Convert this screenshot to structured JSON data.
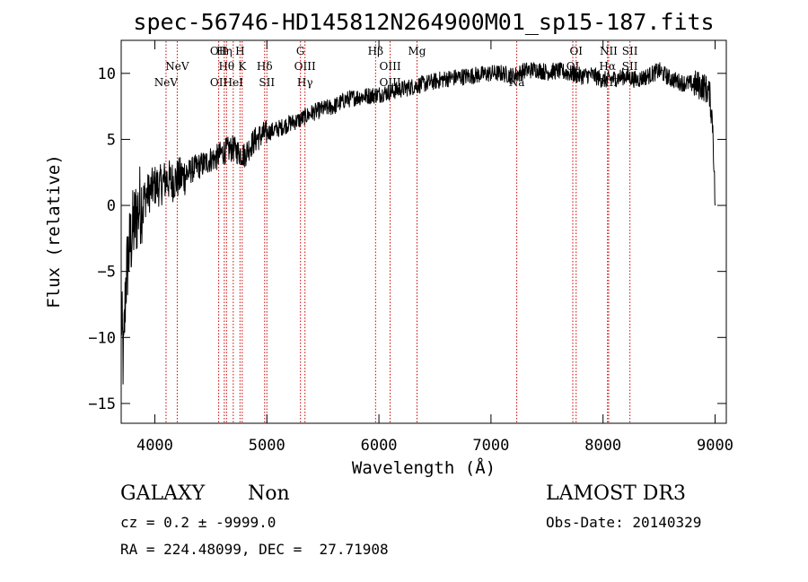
{
  "chart_data": {
    "type": "line",
    "title": "spec-56746-HD145812N264900M01_sp15-187.fits",
    "xlabel": "Wavelength (Å)",
    "ylabel": "Flux (relative)",
    "xlim": [
      3700,
      9100
    ],
    "ylim": [
      -16.5,
      12.5
    ],
    "xticks": [
      4000,
      5000,
      6000,
      7000,
      8000,
      9000
    ],
    "yticks": [
      -15,
      -10,
      -5,
      0,
      5,
      10
    ],
    "series": [
      {
        "name": "spectrum",
        "x": [
          3700,
          3720,
          3740,
          3760,
          3780,
          3800,
          3830,
          3860,
          3900,
          3950,
          4000,
          4050,
          4100,
          4150,
          4200,
          4250,
          4300,
          4350,
          4400,
          4450,
          4500,
          4550,
          4600,
          4650,
          4700,
          4750,
          4800,
          4850,
          4900,
          4950,
          5000,
          5100,
          5200,
          5300,
          5400,
          5500,
          5600,
          5700,
          5800,
          5900,
          6000,
          6100,
          6200,
          6300,
          6400,
          6500,
          6600,
          6700,
          6800,
          6900,
          7000,
          7100,
          7200,
          7300,
          7400,
          7500,
          7600,
          7700,
          7800,
          7900,
          8000,
          8100,
          8200,
          8300,
          8400,
          8500,
          8600,
          8700,
          8800,
          8900,
          8950,
          8980,
          9000
        ],
        "y": [
          -8,
          -12,
          -6,
          -4,
          -3,
          -2,
          -1,
          0,
          0.5,
          1,
          1.5,
          1.5,
          2,
          1.8,
          2,
          2.2,
          2.5,
          2.8,
          3,
          3.2,
          3.5,
          3.6,
          4,
          4.2,
          4.3,
          4,
          3.8,
          4.5,
          5,
          5.3,
          5.5,
          5.8,
          6.2,
          6.5,
          7,
          7.3,
          7.5,
          8,
          8.2,
          8.3,
          8.4,
          8.6,
          8.8,
          9,
          9.2,
          9.4,
          9.6,
          9.7,
          9.8,
          9.9,
          10,
          10,
          9.8,
          10.2,
          10.3,
          10.1,
          10.2,
          10,
          9.8,
          9.9,
          9.5,
          9.6,
          9.8,
          9.5,
          9.8,
          10.2,
          9.6,
          9.3,
          9.2,
          9,
          8.5,
          6,
          0
        ]
      }
    ],
    "lines": [
      {
        "label": "NeV",
        "wl": 4100,
        "row": 3
      },
      {
        "label": "NeV",
        "wl": 4200,
        "row": 2
      },
      {
        "label": "OII",
        "wl": 4570,
        "row": 1
      },
      {
        "label": "OII",
        "wl": 4570,
        "row": 3
      },
      {
        "label": "Hη",
        "wl": 4620,
        "row": 1
      },
      {
        "label": "Hθ",
        "wl": 4640,
        "row": 2
      },
      {
        "label": "HeI",
        "wl": 4700,
        "row": 3
      },
      {
        "label": "H",
        "wl": 4760,
        "row": 1
      },
      {
        "label": "K",
        "wl": 4780,
        "row": 2
      },
      {
        "label": "Hδ",
        "wl": 4980,
        "row": 2
      },
      {
        "label": "SII",
        "wl": 5000,
        "row": 3
      },
      {
        "label": "G",
        "wl": 5300,
        "row": 1
      },
      {
        "label": "OIII",
        "wl": 5340,
        "row": 2
      },
      {
        "label": "Hγ",
        "wl": 5340,
        "row": 3
      },
      {
        "label": "Hβ",
        "wl": 5970,
        "row": 1
      },
      {
        "label": "OIII",
        "wl": 6100,
        "row": 2
      },
      {
        "label": "OIII",
        "wl": 6100,
        "row": 3
      },
      {
        "label": "Mg",
        "wl": 6340,
        "row": 1
      },
      {
        "label": "Na",
        "wl": 7230,
        "row": 3
      },
      {
        "label": "OI",
        "wl": 7760,
        "row": 1
      },
      {
        "label": "OI",
        "wl": 7730,
        "row": 2
      },
      {
        "label": "NII",
        "wl": 8050,
        "row": 1
      },
      {
        "label": "Hα",
        "wl": 8040,
        "row": 2
      },
      {
        "label": "NII",
        "wl": 8050,
        "row": 3
      },
      {
        "label": "SII",
        "wl": 8240,
        "row": 1
      },
      {
        "label": "SII",
        "wl": 8240,
        "row": 2
      }
    ],
    "grid": false,
    "legend": "none"
  },
  "info": {
    "class": "GALAXY",
    "subclass": "Non",
    "survey": "LAMOST DR3",
    "cz": "cz = 0.2 ± -9999.0",
    "obs_date": "Obs-Date: 20140329",
    "radec": "RA = 224.48099, DEC =  27.71908"
  }
}
